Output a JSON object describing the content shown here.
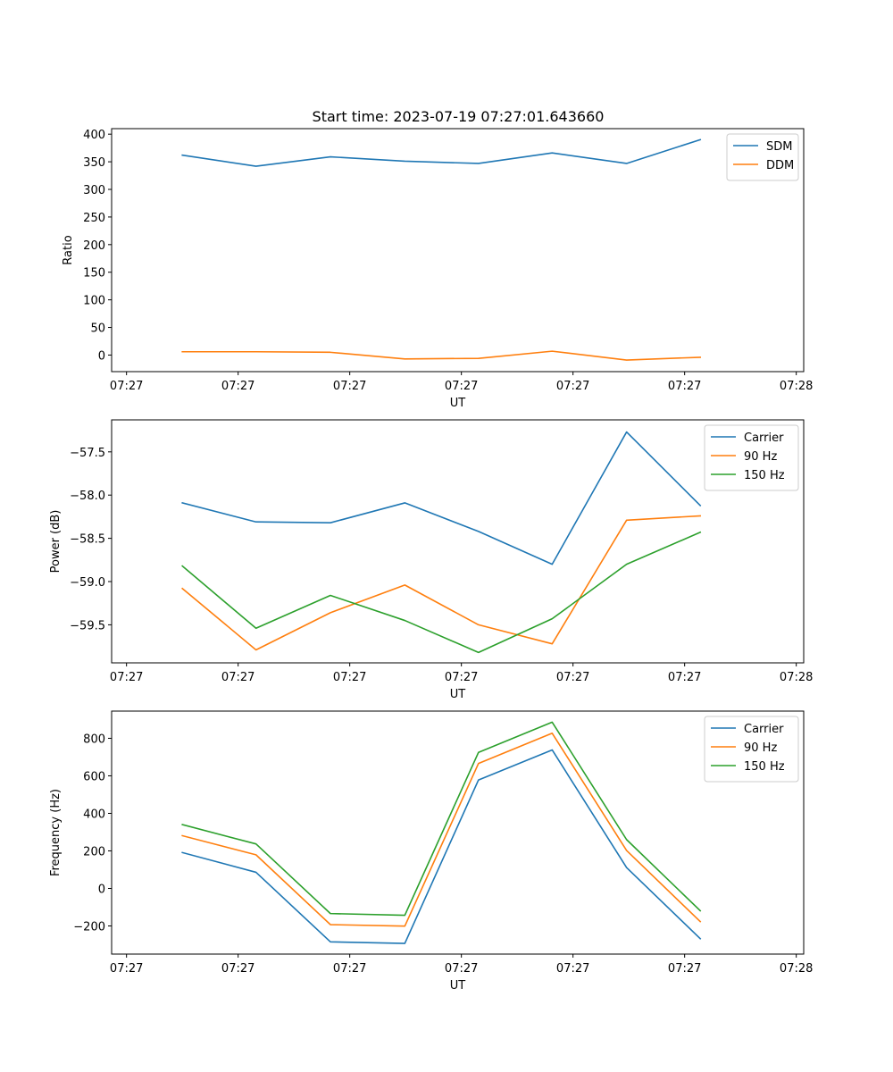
{
  "colors": {
    "c0": "#1f77b4",
    "c1": "#ff7f0e",
    "c2": "#2ca02c"
  },
  "chart_data": [
    {
      "type": "line",
      "title": "Start time: 2023-07-19 07:27:01.643660",
      "xlabel": "UT",
      "ylabel": "Ratio",
      "xlim": [
        -0.2,
        9.1
      ],
      "ylim": [
        -30,
        410
      ],
      "yticks": [
        0,
        50,
        100,
        150,
        200,
        250,
        300,
        350,
        400
      ],
      "ytick_labels": [
        "0",
        "50",
        "100",
        "150",
        "200",
        "250",
        "300",
        "350",
        "400"
      ],
      "xticks": [
        0,
        1.5,
        3,
        4.5,
        6,
        7.5,
        9
      ],
      "xtick_labels": [
        "07:27",
        "07:27",
        "07:27",
        "07:27",
        "07:27",
        "07:27",
        "07:28"
      ],
      "x": [
        0.75,
        1.74,
        2.74,
        3.74,
        4.73,
        5.72,
        6.72,
        7.71
      ],
      "legend_loc": "upper right",
      "series": [
        {
          "name": "SDM",
          "color": "#1f77b4",
          "values": [
            362,
            342,
            359,
            351,
            347,
            366,
            347,
            390
          ]
        },
        {
          "name": "DDM",
          "color": "#ff7f0e",
          "values": [
            6,
            6,
            5,
            -7,
            -6,
            7,
            -9,
            -4
          ]
        }
      ]
    },
    {
      "type": "line",
      "xlabel": "UT",
      "ylabel": "Power (dB)",
      "xlim": [
        -0.2,
        9.1
      ],
      "ylim": [
        -59.94,
        -57.13
      ],
      "yticks": [
        -59.5,
        -59.0,
        -58.5,
        -58.0,
        -57.5
      ],
      "ytick_labels": [
        "−59.5",
        "−59.0",
        "−58.5",
        "−58.0",
        "−57.5"
      ],
      "xticks": [
        0,
        1.5,
        3,
        4.5,
        6,
        7.5,
        9
      ],
      "xtick_labels": [
        "07:27",
        "07:27",
        "07:27",
        "07:27",
        "07:27",
        "07:27",
        "07:28"
      ],
      "x": [
        0.75,
        1.74,
        2.74,
        3.74,
        4.73,
        5.72,
        6.72,
        7.71
      ],
      "legend_loc": "upper right",
      "series": [
        {
          "name": "Carrier",
          "color": "#1f77b4",
          "values": [
            -58.09,
            -58.31,
            -58.32,
            -58.09,
            -58.42,
            -58.8,
            -57.27,
            -58.12
          ]
        },
        {
          "name": "90 Hz",
          "color": "#ff7f0e",
          "values": [
            -59.08,
            -59.79,
            -59.36,
            -59.04,
            -59.5,
            -59.72,
            -58.29,
            -58.24
          ]
        },
        {
          "name": "150 Hz",
          "color": "#2ca02c",
          "values": [
            -58.82,
            -59.54,
            -59.16,
            -59.45,
            -59.82,
            -59.43,
            -58.8,
            -58.43
          ]
        }
      ]
    },
    {
      "type": "line",
      "xlabel": "UT",
      "ylabel": "Frequency (Hz)",
      "xlim": [
        -0.2,
        9.1
      ],
      "ylim": [
        -350,
        945
      ],
      "yticks": [
        -200,
        0,
        200,
        400,
        600,
        800
      ],
      "ytick_labels": [
        "−200",
        "0",
        "200",
        "400",
        "600",
        "800"
      ],
      "xticks": [
        0,
        1.5,
        3,
        4.5,
        6,
        7.5,
        9
      ],
      "xtick_labels": [
        "07:27",
        "07:27",
        "07:27",
        "07:27",
        "07:27",
        "07:27",
        "07:28"
      ],
      "x": [
        0.75,
        1.74,
        2.74,
        3.74,
        4.73,
        5.72,
        6.72,
        7.71
      ],
      "legend_loc": "upper right",
      "series": [
        {
          "name": "Carrier",
          "color": "#1f77b4",
          "values": [
            191,
            86,
            -285,
            -293,
            578,
            738,
            111,
            -268
          ]
        },
        {
          "name": "90 Hz",
          "color": "#ff7f0e",
          "values": [
            281,
            179,
            -193,
            -201,
            666,
            827,
            202,
            -177
          ]
        },
        {
          "name": "150 Hz",
          "color": "#2ca02c",
          "values": [
            340,
            237,
            -134,
            -143,
            725,
            886,
            260,
            -119
          ]
        }
      ]
    }
  ]
}
